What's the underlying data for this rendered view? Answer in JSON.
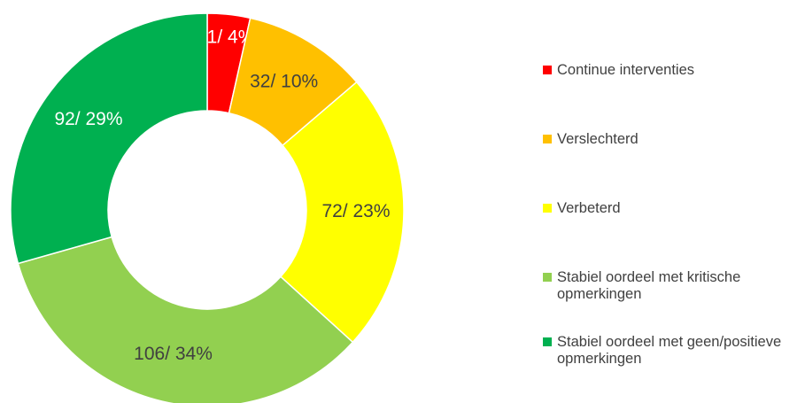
{
  "chart_data": {
    "type": "donut",
    "categories": [
      "Continue interventies",
      "Verslechterd",
      "Verbeterd",
      "Stabiel oordeel met kritische opmerkingen",
      "Stabiel oordeel met geen/positieve opmerkingen"
    ],
    "values": [
      11,
      32,
      72,
      106,
      92
    ],
    "value_labels": [
      "11/ 4%",
      "32/ 10%",
      "72/ 23%",
      "106/ 34%",
      "92/ 29%"
    ],
    "colors": [
      "#ff0000",
      "#ffc000",
      "#ffff00",
      "#92d050",
      "#00b050"
    ],
    "label_colors": [
      "#ffffff",
      "#404040",
      "#404040",
      "#404040",
      "#ffffff"
    ],
    "legend": "right"
  }
}
